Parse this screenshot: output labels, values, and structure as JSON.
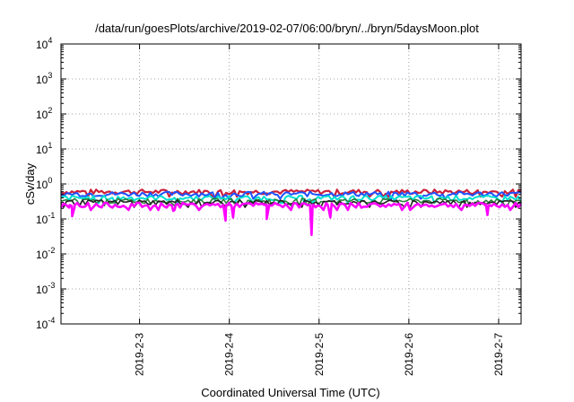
{
  "chart_data": {
    "type": "line",
    "title": "/data/run/goesPlots/archive/2019-02-07/06:00/bryn/../bryn/5daysMoon.plot",
    "xlabel": "Coordinated Universal Time (UTC)",
    "ylabel": "cSv/day",
    "yscale": "log",
    "grid": true,
    "ylim": [
      0.0001,
      10000
    ],
    "y_ticks": [
      {
        "base": "10",
        "exp": "4"
      },
      {
        "base": "10",
        "exp": "3"
      },
      {
        "base": "10",
        "exp": "2"
      },
      {
        "base": "10",
        "exp": "1"
      },
      {
        "base": "10",
        "exp": "0"
      },
      {
        "base": "10",
        "exp": "-1"
      },
      {
        "base": "10",
        "exp": "-2"
      },
      {
        "base": "10",
        "exp": "-3"
      },
      {
        "base": "10",
        "exp": "-4"
      }
    ],
    "xlim": [
      "2019-02-02T03:00",
      "2019-02-07T06:00"
    ],
    "x_ticks": [
      "2019-2-3",
      "2019-2-4",
      "2019-2-5",
      "2019-2-6",
      "2019-2-7"
    ],
    "series": [
      {
        "color": "#cc1f3a",
        "base": 0.6,
        "width": 2.2,
        "dips": []
      },
      {
        "color": "#1f50ff",
        "base": 0.52,
        "width": 2.0,
        "dips": []
      },
      {
        "color": "#00e0d0",
        "base": 0.4,
        "width": 2.0,
        "dips": []
      },
      {
        "color": "#2a7f3a",
        "base": 0.33,
        "width": 1.6,
        "dips": []
      },
      {
        "color": "#222222",
        "base": 0.3,
        "width": 1.6,
        "dips": []
      },
      {
        "color": "#ff00ff",
        "base": 0.25,
        "width": 2.6,
        "dips": [
          {
            "x": "2019-02-02T06:00",
            "y": 0.12
          },
          {
            "x": "2019-02-03T09:00",
            "y": 0.17
          },
          {
            "x": "2019-02-03T23:00",
            "y": 0.09
          },
          {
            "x": "2019-02-04T01:00",
            "y": 0.11
          },
          {
            "x": "2019-02-04T10:00",
            "y": 0.1
          },
          {
            "x": "2019-02-04T22:00",
            "y": 0.035
          },
          {
            "x": "2019-02-05T03:00",
            "y": 0.11
          },
          {
            "x": "2019-02-06T21:00",
            "y": 0.13
          }
        ]
      }
    ]
  }
}
